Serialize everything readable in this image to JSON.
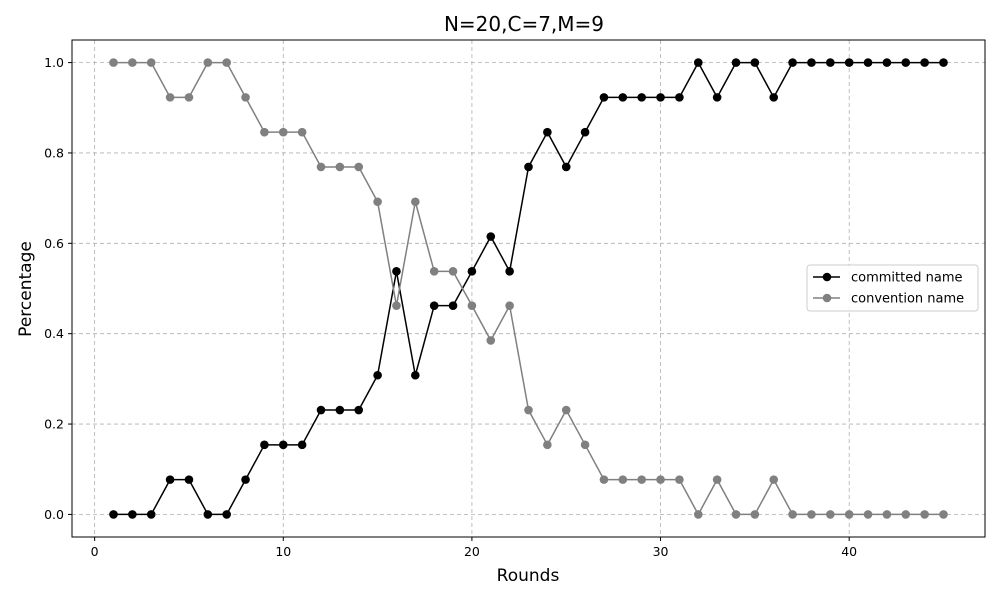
{
  "chart_data": {
    "type": "line",
    "title": "N=20,C=7,M=9",
    "xlabel": "Rounds",
    "ylabel": "Percentage",
    "xlim": [
      -1.2,
      47.2
    ],
    "ylim": [
      -0.05,
      1.05
    ],
    "xticks": [
      0,
      10,
      20,
      30,
      40
    ],
    "yticks": [
      0.0,
      0.2,
      0.4,
      0.6,
      0.8,
      1.0
    ],
    "xtick_labels": [
      "0",
      "10",
      "20",
      "30",
      "40"
    ],
    "ytick_labels": [
      "0.0",
      "0.2",
      "0.4",
      "0.6",
      "0.8",
      "1.0"
    ],
    "grid": true,
    "legend_position": "center-right",
    "x": [
      1,
      2,
      3,
      4,
      5,
      6,
      7,
      8,
      9,
      10,
      11,
      12,
      13,
      14,
      15,
      16,
      17,
      18,
      19,
      20,
      21,
      22,
      23,
      24,
      25,
      26,
      27,
      28,
      29,
      30,
      31,
      32,
      33,
      34,
      35,
      36,
      37,
      38,
      39,
      40,
      41,
      42,
      43,
      44,
      45
    ],
    "series": [
      {
        "name": "committed name",
        "color": "#000000",
        "values": [
          0.0,
          0.0,
          0.0,
          0.077,
          0.077,
          0.0,
          0.0,
          0.077,
          0.154,
          0.154,
          0.154,
          0.231,
          0.231,
          0.231,
          0.308,
          0.538,
          0.308,
          0.462,
          0.462,
          0.538,
          0.615,
          0.538,
          0.769,
          0.846,
          0.769,
          0.846,
          0.923,
          0.923,
          0.923,
          0.923,
          0.923,
          1.0,
          0.923,
          1.0,
          1.0,
          0.923,
          1.0,
          1.0,
          1.0,
          1.0,
          1.0,
          1.0,
          1.0,
          1.0,
          1.0
        ]
      },
      {
        "name": "convention name",
        "color": "#808080",
        "values": [
          1.0,
          1.0,
          1.0,
          0.923,
          0.923,
          1.0,
          1.0,
          0.923,
          0.846,
          0.846,
          0.846,
          0.769,
          0.769,
          0.769,
          0.692,
          0.462,
          0.692,
          0.538,
          0.538,
          0.462,
          0.385,
          0.462,
          0.231,
          0.154,
          0.231,
          0.154,
          0.077,
          0.077,
          0.077,
          0.077,
          0.077,
          0.0,
          0.077,
          0.0,
          0.0,
          0.077,
          0.0,
          0.0,
          0.0,
          0.0,
          0.0,
          0.0,
          0.0,
          0.0,
          0.0
        ]
      }
    ]
  }
}
